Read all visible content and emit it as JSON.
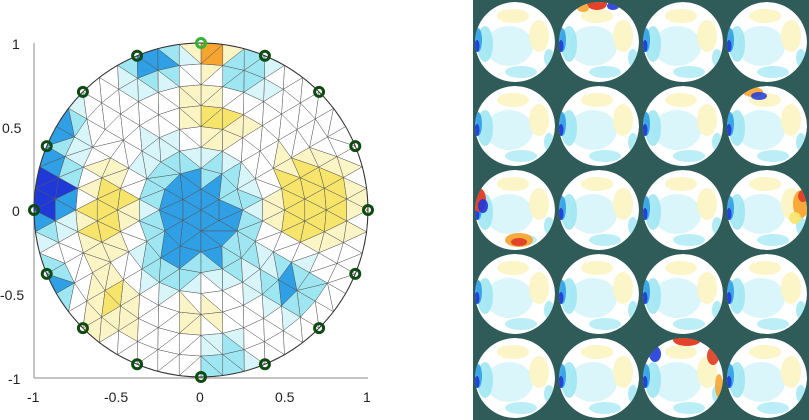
{
  "chart_data": [
    {
      "type": "scatter",
      "description_kind": "mesh-reconstruction",
      "title": "",
      "xlabel": "",
      "ylabel": "",
      "xlim": [
        -1,
        1
      ],
      "ylim": [
        -1,
        1
      ],
      "xticks": [
        "-1",
        "-0.5",
        "0",
        "0.5",
        "1"
      ],
      "yticks": [
        "1",
        "0.5",
        "0",
        "-0.5",
        "-1"
      ],
      "grid": false,
      "electrodes": {
        "count": 16,
        "radius": 1.0,
        "angles_deg": [
          90,
          67.5,
          45,
          22.5,
          0,
          -22.5,
          -45,
          -67.5,
          -90,
          -112.5,
          -135,
          -157.5,
          180,
          157.5,
          135,
          112.5
        ],
        "active_index": 0,
        "active_color": "#33b233",
        "color": "#0f4a12"
      },
      "palette": {
        "dark_blue": "#1f39d9",
        "blue": "#2f9fe6",
        "light_blue": "#9ee7f2",
        "pale_blue": "#d8f6fa",
        "white": "#ffffff",
        "pale_yellow": "#fbf4c4",
        "yellow": "#f6e56a",
        "orange": "#f7a531",
        "red": "#e2432a"
      }
    },
    {
      "type": "heatmap",
      "description_kind": "image-grid",
      "rows": 5,
      "cols": 4,
      "background": "#2f5b59",
      "panels": [
        {
          "r": 0,
          "c": 0,
          "hot": "none"
        },
        {
          "r": 0,
          "c": 1,
          "hot": "top"
        },
        {
          "r": 0,
          "c": 2,
          "hot": "none"
        },
        {
          "r": 0,
          "c": 3,
          "hot": "none"
        },
        {
          "r": 1,
          "c": 0,
          "hot": "none"
        },
        {
          "r": 1,
          "c": 1,
          "hot": "none"
        },
        {
          "r": 1,
          "c": 2,
          "hot": "none"
        },
        {
          "r": 1,
          "c": 3,
          "hot": "top-left-blue"
        },
        {
          "r": 2,
          "c": 0,
          "hot": "left-and-bottom"
        },
        {
          "r": 2,
          "c": 1,
          "hot": "none"
        },
        {
          "r": 2,
          "c": 2,
          "hot": "none"
        },
        {
          "r": 2,
          "c": 3,
          "hot": "right"
        },
        {
          "r": 3,
          "c": 0,
          "hot": "none"
        },
        {
          "r": 3,
          "c": 1,
          "hot": "none"
        },
        {
          "r": 3,
          "c": 2,
          "hot": "none"
        },
        {
          "r": 3,
          "c": 3,
          "hot": "none"
        },
        {
          "r": 4,
          "c": 0,
          "hot": "none"
        },
        {
          "r": 4,
          "c": 1,
          "hot": "none"
        },
        {
          "r": 4,
          "c": 2,
          "hot": "top-rim"
        },
        {
          "r": 4,
          "c": 3,
          "hot": "none"
        }
      ]
    }
  ]
}
